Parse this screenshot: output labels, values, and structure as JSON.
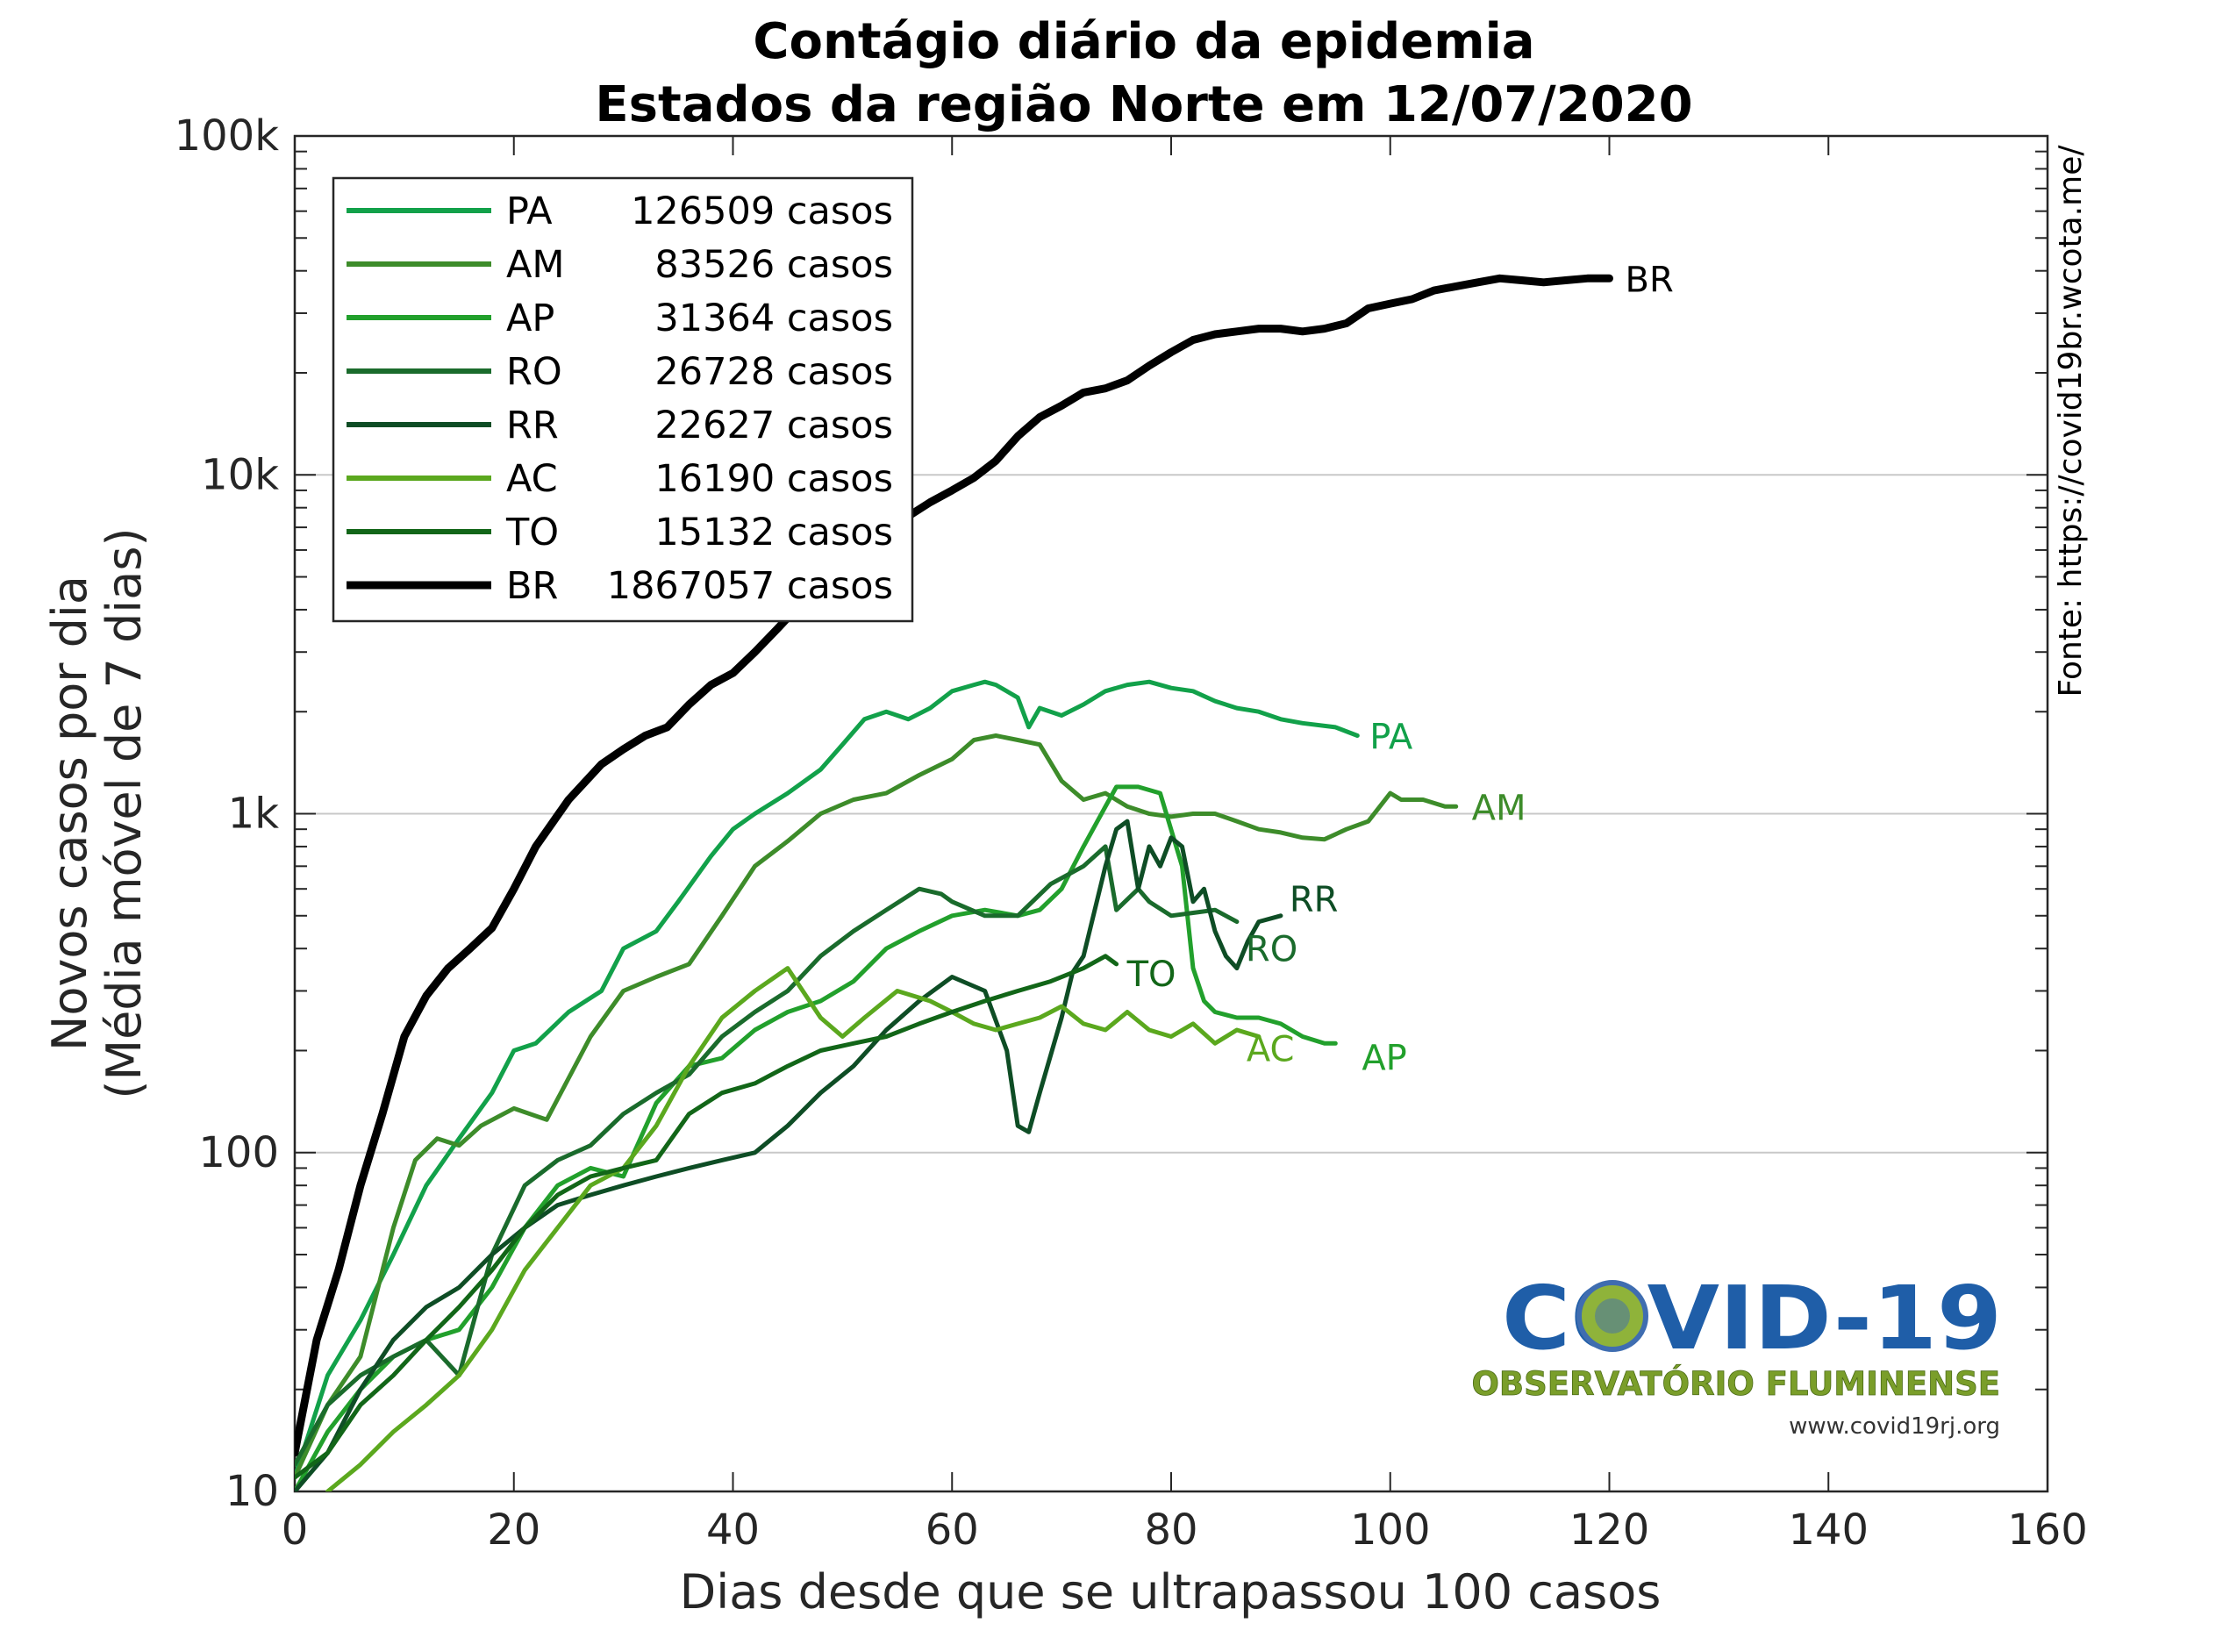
{
  "chart_data": {
    "type": "line",
    "title": "Contágio diário da epidemia",
    "subtitle": "Estados da região Norte em 12/07/2020",
    "xlabel": "Dias desde que se ultrapassou 100 casos",
    "ylabel": "Novos casos por dia",
    "ylabel2": "(Média móvel de 7 dias)",
    "xlim": [
      0,
      160
    ],
    "ylim": [
      10,
      100000
    ],
    "yscale": "log",
    "grid": "horizontal decades",
    "legend_position": "top-left",
    "x_ticks": [
      "0",
      "20",
      "40",
      "60",
      "80",
      "100",
      "120",
      "140",
      "160"
    ],
    "y_ticks": [
      "10",
      "100",
      "1k",
      "10k",
      "100k"
    ],
    "source_text": "Fonte: https://covid19br.wcota.me/",
    "series": [
      {
        "name": "PA",
        "total": "126509 casos",
        "color": "#12a14a",
        "x": [
          0,
          3,
          6,
          9,
          12,
          15,
          18,
          20,
          22,
          25,
          28,
          30,
          33,
          35,
          38,
          40,
          42,
          45,
          48,
          50,
          52,
          54,
          56,
          58,
          60,
          62,
          63,
          64,
          66,
          67,
          68,
          70,
          72,
          74,
          76,
          78,
          80,
          82,
          84,
          86,
          88,
          90,
          92,
          95,
          97
        ],
        "y": [
          11,
          22,
          32,
          50,
          80,
          110,
          150,
          200,
          210,
          260,
          300,
          400,
          450,
          550,
          750,
          900,
          1000,
          1150,
          1350,
          1600,
          1900,
          2000,
          1900,
          2050,
          2300,
          2400,
          2450,
          2400,
          2200,
          1800,
          2050,
          1950,
          2100,
          2300,
          2400,
          2450,
          2350,
          2300,
          2150,
          2050,
          2000,
          1900,
          1850,
          1800,
          1700
        ],
        "end_label": "PA"
      },
      {
        "name": "AM",
        "total": "83526 casos",
        "color": "#3d8c2a",
        "x": [
          0,
          3,
          6,
          9,
          11,
          13,
          15,
          17,
          20,
          23,
          27,
          30,
          33,
          36,
          39,
          42,
          45,
          48,
          51,
          54,
          57,
          60,
          62,
          64,
          66,
          68,
          70,
          72,
          74,
          76,
          78,
          80,
          82,
          84,
          86,
          88,
          90,
          92,
          94,
          96,
          98,
          100,
          101,
          103,
          105,
          106
        ],
        "y": [
          11,
          18,
          25,
          60,
          95,
          110,
          105,
          120,
          135,
          125,
          220,
          300,
          330,
          360,
          500,
          700,
          830,
          1000,
          1100,
          1150,
          1300,
          1450,
          1650,
          1700,
          1650,
          1600,
          1250,
          1100,
          1150,
          1050,
          1000,
          980,
          1000,
          1000,
          950,
          900,
          880,
          850,
          840,
          900,
          950,
          1150,
          1100,
          1100,
          1050,
          1050
        ],
        "end_label": "AM"
      },
      {
        "name": "AP",
        "total": "31364 casos",
        "color": "#22a02c",
        "x": [
          0,
          3,
          6,
          9,
          12,
          15,
          18,
          21,
          24,
          27,
          30,
          33,
          36,
          39,
          42,
          45,
          48,
          51,
          54,
          57,
          60,
          63,
          66,
          68,
          70,
          72,
          74,
          75,
          77,
          79,
          81,
          82,
          83,
          84,
          86,
          88,
          90,
          92,
          94,
          95
        ],
        "y": [
          10,
          15,
          20,
          25,
          28,
          30,
          40,
          60,
          80,
          90,
          85,
          140,
          180,
          190,
          230,
          260,
          280,
          320,
          400,
          450,
          500,
          520,
          500,
          520,
          600,
          800,
          1050,
          1200,
          1200,
          1150,
          700,
          350,
          280,
          260,
          250,
          250,
          240,
          220,
          210,
          210
        ],
        "end_label": "AP"
      },
      {
        "name": "RO",
        "total": "26728 casos",
        "color": "#1a6b2c",
        "x": [
          0,
          3,
          6,
          9,
          12,
          15,
          18,
          21,
          24,
          27,
          30,
          33,
          36,
          39,
          42,
          45,
          48,
          51,
          54,
          57,
          59,
          60,
          63,
          66,
          69,
          72,
          74,
          75,
          77,
          78,
          80,
          82,
          84,
          86
        ],
        "y": [
          12,
          18,
          22,
          25,
          28,
          22,
          50,
          80,
          95,
          105,
          130,
          150,
          170,
          220,
          260,
          300,
          380,
          450,
          520,
          600,
          580,
          550,
          500,
          500,
          620,
          700,
          800,
          520,
          600,
          550,
          500,
          510,
          520,
          480
        ],
        "end_label": "RO"
      },
      {
        "name": "RR",
        "total": "22627 casos",
        "color": "#0e4d25",
        "x": [
          0,
          3,
          6,
          9,
          12,
          15,
          18,
          21,
          24,
          27,
          30,
          33,
          36,
          39,
          42,
          45,
          48,
          51,
          54,
          57,
          60,
          63,
          65,
          66,
          67,
          68,
          70,
          71,
          72,
          74,
          75,
          76,
          77,
          78,
          79,
          80,
          81,
          82,
          83,
          84,
          85,
          86,
          87,
          88,
          90
        ],
        "y": [
          10,
          13,
          20,
          28,
          35,
          40,
          50,
          60,
          70,
          75,
          80,
          85,
          90,
          95,
          100,
          120,
          150,
          180,
          230,
          280,
          330,
          300,
          200,
          120,
          115,
          150,
          250,
          340,
          380,
          700,
          900,
          950,
          600,
          800,
          700,
          850,
          800,
          550,
          600,
          450,
          380,
          350,
          420,
          480,
          500
        ],
        "end_label": "RR"
      },
      {
        "name": "AC",
        "total": "16190 casos",
        "color": "#5ba81e",
        "x": [
          3,
          6,
          9,
          12,
          15,
          18,
          21,
          24,
          27,
          30,
          33,
          36,
          39,
          42,
          45,
          48,
          50,
          52,
          55,
          58,
          60,
          62,
          64,
          66,
          68,
          70,
          72,
          74,
          76,
          78,
          80,
          82,
          84,
          86,
          88
        ],
        "y": [
          10,
          12,
          15,
          18,
          22,
          30,
          45,
          60,
          80,
          90,
          120,
          180,
          250,
          300,
          350,
          250,
          220,
          250,
          300,
          280,
          260,
          240,
          230,
          240,
          250,
          270,
          240,
          230,
          260,
          230,
          220,
          240,
          210,
          230,
          220
        ],
        "end_label": "AC"
      },
      {
        "name": "TO",
        "total": "15132 casos",
        "color": "#126618",
        "x": [
          0,
          3,
          6,
          9,
          12,
          15,
          18,
          21,
          24,
          27,
          30,
          33,
          36,
          39,
          42,
          45,
          48,
          51,
          54,
          57,
          60,
          63,
          66,
          69,
          72,
          74,
          75
        ],
        "y": [
          11,
          13,
          18,
          22,
          28,
          35,
          45,
          60,
          75,
          85,
          90,
          95,
          130,
          150,
          160,
          180,
          200,
          210,
          220,
          240,
          260,
          280,
          300,
          320,
          350,
          380,
          360
        ],
        "end_label": "TO"
      },
      {
        "name": "BR",
        "total": "1867057 casos",
        "color": "#000000",
        "x": [
          0,
          2,
          4,
          6,
          8,
          10,
          12,
          14,
          16,
          18,
          20,
          22,
          25,
          28,
          30,
          32,
          34,
          36,
          38,
          40,
          42,
          44,
          46,
          48,
          50,
          52,
          55,
          58,
          60,
          62,
          64,
          66,
          68,
          70,
          72,
          74,
          76,
          78,
          80,
          82,
          84,
          86,
          88,
          90,
          92,
          94,
          96,
          98,
          100,
          102,
          104,
          106,
          108,
          110,
          112,
          114,
          116,
          118,
          120
        ],
        "y": [
          13,
          28,
          45,
          80,
          130,
          220,
          290,
          350,
          400,
          460,
          600,
          800,
          1100,
          1400,
          1550,
          1700,
          1800,
          2100,
          2400,
          2600,
          3000,
          3500,
          4100,
          4500,
          5200,
          6000,
          7200,
          8300,
          9000,
          9800,
          11000,
          13000,
          14800,
          16000,
          17500,
          18000,
          19000,
          21000,
          23000,
          25000,
          26000,
          26500,
          27000,
          27000,
          26500,
          27000,
          28000,
          31000,
          32000,
          33000,
          35000,
          36000,
          37000,
          38000,
          37500,
          37000,
          37500,
          38000,
          38000
        ],
        "end_label": "BR"
      }
    ]
  },
  "logo": {
    "title": "COVID-19",
    "subtitle": "OBSERVATÓRIO FLUMINENSE",
    "url": "www.covid19rj.org",
    "blue": "#1f5ea8",
    "green": "#7a9e2a"
  }
}
